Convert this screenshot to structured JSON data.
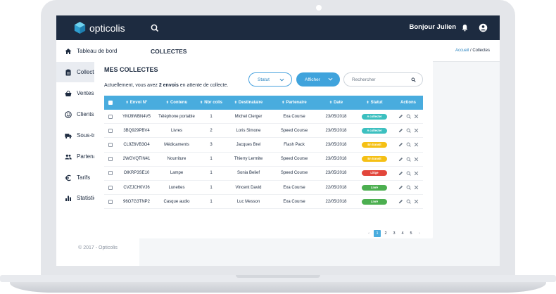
{
  "app": {
    "brand": "opticolis",
    "greeting": "Bonjour Julien",
    "copyright": "© 2017 - Opticolis"
  },
  "sidebar": {
    "items": [
      {
        "label": "Tableau de bord",
        "icon": "home-icon",
        "active": false,
        "expandable": false
      },
      {
        "label": "Collectes",
        "icon": "clipboard-icon",
        "active": true,
        "expandable": false
      },
      {
        "label": "Ventes",
        "icon": "basket-icon",
        "active": false,
        "expandable": false
      },
      {
        "label": "Clients",
        "icon": "smiley-icon",
        "active": false,
        "expandable": true
      },
      {
        "label": "Sous-traitance",
        "icon": "truck-icon",
        "active": false,
        "expandable": false
      },
      {
        "label": "Partenariats",
        "icon": "people-icon",
        "active": false,
        "expandable": true
      },
      {
        "label": "Tarifs",
        "icon": "euro-icon",
        "active": false,
        "expandable": true
      },
      {
        "label": "Statistiques",
        "icon": "bar-chart-icon",
        "active": false,
        "expandable": false
      }
    ]
  },
  "header": {
    "title": "COLLECTES",
    "breadcrumb_link": "Accueil",
    "breadcrumb_sep": " / ",
    "breadcrumb_current": "Collectes"
  },
  "card": {
    "title": "MES COLLECTES",
    "sub_prefix": "Actuellement, vous avez ",
    "sub_count": "2 envois",
    "sub_suffix": " en attente de collecte.",
    "statut_label": "Statut",
    "afficher_label": "Afficher",
    "search_placeholder": "Rechercher"
  },
  "table": {
    "headers": [
      "Envoi N°",
      "Contenu",
      "Nbr colis",
      "Destinataire",
      "Partenaire",
      "Date",
      "Statut",
      "Actions"
    ],
    "rows": [
      {
        "envoi": "YMJ9WBN4V5",
        "contenu": "Téléphone portable",
        "nbr": "1",
        "dest": "Michel Clerger",
        "partenaire": "Exa Course",
        "date": "23/05/2018",
        "statut": "A collecter",
        "color": "#3cc0c0"
      },
      {
        "envoi": "3BQ929PBV4",
        "contenu": "Livres",
        "nbr": "2",
        "dest": "Loris Simone",
        "partenaire": "Speed Course",
        "date": "23/05/2018",
        "statut": "A collecter",
        "color": "#3cc0c0"
      },
      {
        "envoi": "CL9Z6VB3O4",
        "contenu": "Médicaments",
        "nbr": "3",
        "dest": "Jacques Brel",
        "partenaire": "Flash Pack",
        "date": "23/05/2018",
        "statut": "En transit",
        "color": "#f5c015"
      },
      {
        "envoi": "2WGVQTIN41",
        "contenu": "Nourriture",
        "nbr": "1",
        "dest": "Thierry Lermite",
        "partenaire": "Speed Course",
        "date": "23/05/2018",
        "statut": "En transit",
        "color": "#f5c015"
      },
      {
        "envoi": "OIKRP3SE10",
        "contenu": "Lampe",
        "nbr": "1",
        "dest": "Sonia Belief",
        "partenaire": "Speed Course",
        "date": "23/05/2018",
        "statut": "Litige",
        "color": "#e2463b"
      },
      {
        "envoi": "CVZJCH0VJ6",
        "contenu": "Lunettes",
        "nbr": "1",
        "dest": "Vincent David",
        "partenaire": "Exa Course",
        "date": "22/05/2018",
        "statut": "Livré",
        "color": "#4caf50"
      },
      {
        "envoi": "96O7G3TNP2",
        "contenu": "Casque audio",
        "nbr": "1",
        "dest": "Luc Messon",
        "partenaire": "Exa Course",
        "date": "22/05/2018",
        "statut": "Livré",
        "color": "#4caf50"
      }
    ]
  },
  "pagination": {
    "prev": "‹",
    "pages": [
      "1",
      "2",
      "3",
      "4",
      "5"
    ],
    "current": "1",
    "next": "›"
  },
  "colors": {
    "topbar": "#1d2b40",
    "accent": "#49acde"
  }
}
